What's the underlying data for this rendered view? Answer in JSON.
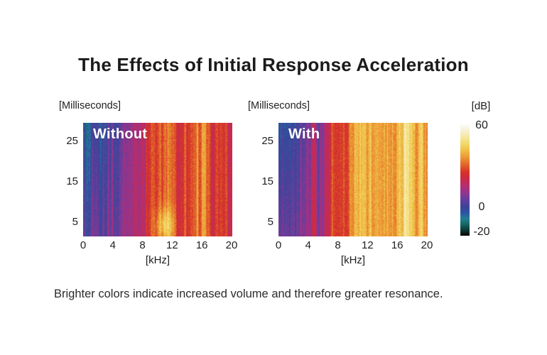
{
  "title": "The Effects of Initial Response Acceleration",
  "caption": "Brighter colors indicate increased volume and therefore greater resonance.",
  "chart_data": {
    "type": "heatmap",
    "description": "Two audio spectrograms comparing resonance without and with Initial Response Acceleration; color encodes level in dB.",
    "charts": [
      {
        "label": "Without",
        "y_axis_label": "[Milliseconds]",
        "x_axis_label": "[kHz]",
        "x_ticks": [
          0,
          4,
          8,
          12,
          16,
          20
        ],
        "y_ticks": [
          25,
          15,
          5
        ],
        "x_range_khz": [
          0,
          20
        ],
        "y_range_ms": [
          0,
          30
        ],
        "bands_khz": [
          0,
          1,
          2,
          3,
          4,
          5,
          6,
          7,
          8,
          9,
          10,
          11,
          12,
          13,
          14,
          15,
          16,
          17,
          18,
          19,
          20
        ],
        "bands_db": [
          -1,
          1,
          2,
          3,
          4,
          6,
          9,
          13,
          17,
          22,
          27,
          31,
          26,
          24,
          25,
          29,
          37,
          27,
          25,
          24,
          23
        ],
        "hotspots": [
          {
            "khz": 11,
            "ms": 3,
            "r_khz": 1.3,
            "r_ms": 4.5,
            "boost_db": 13
          }
        ]
      },
      {
        "label": "With",
        "y_axis_label": "[Milliseconds]",
        "x_axis_label": "[kHz]",
        "x_ticks": [
          0,
          4,
          8,
          12,
          16,
          20
        ],
        "y_ticks": [
          25,
          15,
          5
        ],
        "x_range_khz": [
          0,
          20
        ],
        "y_range_ms": [
          0,
          30
        ],
        "bands_khz": [
          0,
          1,
          2,
          3,
          4,
          5,
          6,
          7,
          8,
          9,
          10,
          11,
          12,
          13,
          14,
          15,
          16,
          17,
          18,
          19,
          20
        ],
        "bands_db": [
          0,
          2,
          3,
          5,
          8,
          12,
          16,
          20,
          25,
          30,
          36,
          39,
          34,
          40,
          38,
          35,
          40,
          45,
          42,
          41,
          39
        ],
        "hotspots": []
      }
    ],
    "colorbar": {
      "label": "[dB]",
      "ticks": [
        60,
        0,
        -20
      ],
      "range": [
        -20,
        60
      ],
      "stops": [
        {
          "v": 60,
          "c": "#ffffff"
        },
        {
          "v": 55,
          "c": "#f7f1d8"
        },
        {
          "v": 48,
          "c": "#f3e388"
        },
        {
          "v": 42,
          "c": "#f1c94e"
        },
        {
          "v": 36,
          "c": "#ec9c35"
        },
        {
          "v": 30,
          "c": "#e2622b"
        },
        {
          "v": 25,
          "c": "#d63227"
        },
        {
          "v": 20,
          "c": "#c92b49"
        },
        {
          "v": 15,
          "c": "#b52e72"
        },
        {
          "v": 10,
          "c": "#8f3690"
        },
        {
          "v": 5,
          "c": "#5f3f9e"
        },
        {
          "v": 0,
          "c": "#3a4497"
        },
        {
          "v": -4,
          "c": "#2c56a5"
        },
        {
          "v": -8,
          "c": "#227f93"
        },
        {
          "v": -12,
          "c": "#176a66"
        },
        {
          "v": -16,
          "c": "#0c3b38"
        },
        {
          "v": -20,
          "c": "#060606"
        }
      ]
    }
  }
}
